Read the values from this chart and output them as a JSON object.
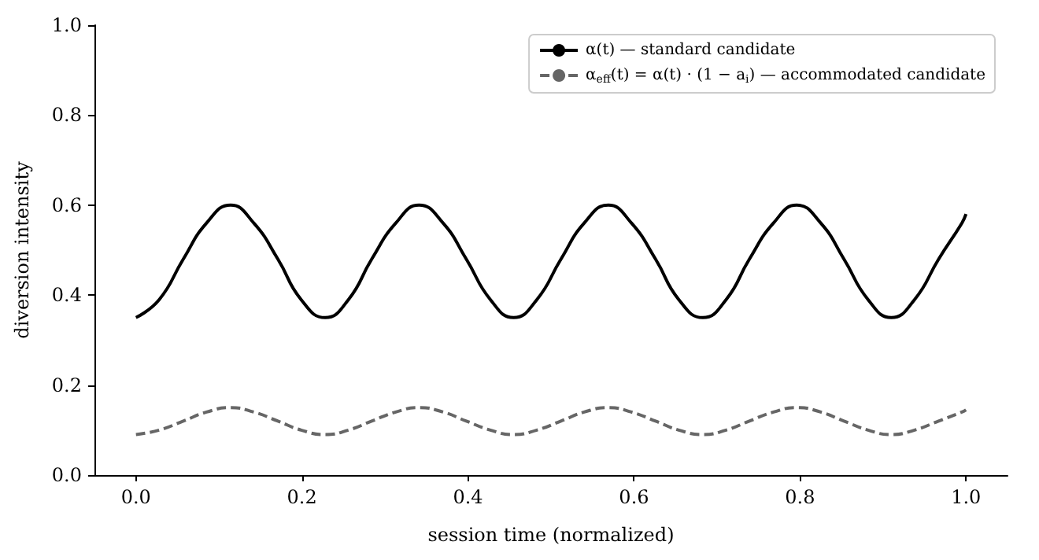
{
  "chart_data": {
    "type": "line",
    "xlabel": "session time (normalized)",
    "ylabel": "diversion intensity",
    "x": [
      0,
      0.028,
      0.057,
      0.085,
      0.114,
      0.142,
      0.171,
      0.199,
      0.228,
      0.256,
      0.284,
      0.313,
      0.341,
      0.37,
      0.398,
      0.427,
      0.455,
      0.483,
      0.512,
      0.54,
      0.569,
      0.597,
      0.626,
      0.654,
      0.683,
      0.711,
      0.739,
      0.768,
      0.796,
      0.825,
      0.853,
      0.882,
      0.91,
      0.938,
      0.967,
      0.995,
      1.0
    ],
    "series": [
      {
        "name": "α(t) — standard candidate",
        "color": "#000000",
        "line_style": "solid",
        "values": [
          0.35,
          0.39,
          0.48,
          0.56,
          0.6,
          0.56,
          0.48,
          0.39,
          0.35,
          0.39,
          0.48,
          0.56,
          0.6,
          0.56,
          0.48,
          0.39,
          0.35,
          0.39,
          0.48,
          0.56,
          0.6,
          0.56,
          0.48,
          0.39,
          0.35,
          0.39,
          0.48,
          0.56,
          0.6,
          0.56,
          0.48,
          0.39,
          0.35,
          0.39,
          0.48,
          0.56,
          0.58
        ]
      },
      {
        "name": "α$_{eff}$(t) = α(t) · (1 − a$_{i}$) — accommodated candidate",
        "color": "#666666",
        "line_style": "dashed",
        "values": [
          0.09,
          0.1,
          0.12,
          0.14,
          0.15,
          0.14,
          0.12,
          0.1,
          0.09,
          0.1,
          0.12,
          0.14,
          0.15,
          0.14,
          0.12,
          0.1,
          0.09,
          0.1,
          0.12,
          0.14,
          0.15,
          0.14,
          0.12,
          0.1,
          0.09,
          0.1,
          0.12,
          0.14,
          0.15,
          0.14,
          0.12,
          0.1,
          0.09,
          0.1,
          0.12,
          0.14,
          0.145
        ]
      }
    ],
    "xlim": [
      -0.05,
      1.05
    ],
    "xticks": [
      {
        "value": 0,
        "label": "0.0"
      },
      {
        "value": 0.2,
        "label": "0.2"
      },
      {
        "value": 0.4,
        "label": "0.4"
      },
      {
        "value": 0.6,
        "label": "0.6"
      },
      {
        "value": 0.8,
        "label": "0.8"
      },
      {
        "value": 1.0,
        "label": "1.0"
      }
    ],
    "ylim": [
      0,
      1.0
    ],
    "yticks": [
      {
        "value": 0,
        "label": "0.0"
      },
      {
        "value": 0.2,
        "label": "0.2"
      },
      {
        "value": 0.4,
        "label": "0.4"
      },
      {
        "value": 0.6,
        "label": "0.6"
      },
      {
        "value": 0.8,
        "label": "0.8"
      },
      {
        "value": 1.0,
        "label": "1.0"
      }
    ],
    "grid": false,
    "legend": "top right",
    "marker": "none"
  }
}
